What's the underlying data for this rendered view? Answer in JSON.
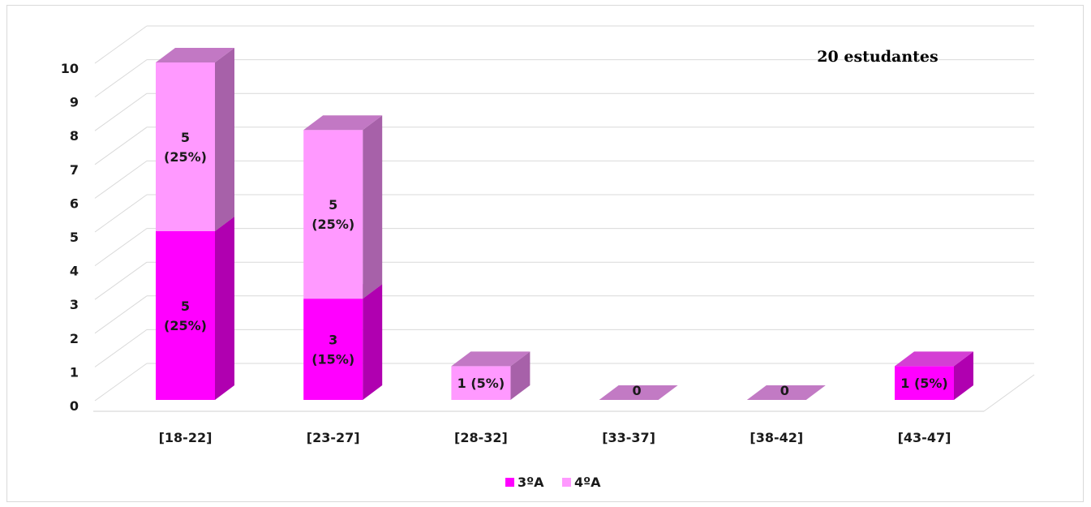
{
  "chart_data": {
    "type": "bar",
    "stacked": true,
    "three_d": true,
    "categories": [
      "[18-22]",
      "[23-27]",
      "[28-32]",
      "[33-37]",
      "[38-42]",
      "[43-47]"
    ],
    "series": [
      {
        "name": "3ºA",
        "values": [
          5,
          3,
          0,
          0,
          0,
          1
        ],
        "labels": [
          "5\n(25%)",
          "3\n(15%)",
          "",
          "0",
          "0",
          "1 (5%)"
        ]
      },
      {
        "name": "4ºA",
        "values": [
          5,
          5,
          1,
          0,
          0,
          0
        ],
        "labels": [
          "5\n(25%)",
          "5\n(25%)",
          "1 (5%)",
          "",
          "",
          ""
        ]
      }
    ],
    "annotation": "20 estudantes",
    "ylim": [
      0,
      10
    ],
    "yticks": [
      0,
      1,
      2,
      3,
      4,
      5,
      6,
      7,
      8,
      9,
      10
    ],
    "grid": true,
    "legend": "bottom",
    "colors": {
      "3ºA": {
        "front": "#ff00ff",
        "side": "#b000b0",
        "top": "#d43fd4"
      },
      "4ºA": {
        "front": "#ff99ff",
        "side": "#a761a9",
        "top": "#c278c4"
      },
      "grid": "#d9d9d9",
      "floor_zero": "#c27ac4"
    }
  }
}
